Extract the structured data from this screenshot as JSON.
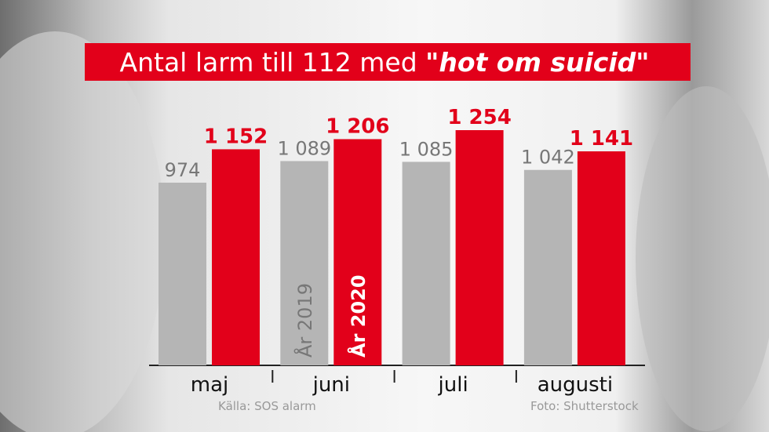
{
  "chart_data": {
    "type": "bar",
    "title": "Antal larm till 112 med",
    "title_emphasis": "\"hot om suicid\"",
    "categories": [
      "maj",
      "juni",
      "juli",
      "augusti"
    ],
    "series": [
      {
        "name": "År 2019",
        "color": "#b5b5b5",
        "values": [
          974,
          1089,
          1085,
          1042
        ],
        "value_labels": [
          "974",
          "1 089",
          "1 085",
          "1 042"
        ]
      },
      {
        "name": "År 2020",
        "color": "#e2001a",
        "values": [
          1152,
          1206,
          1254,
          1141
        ],
        "value_labels": [
          "1 152",
          "1 206",
          "1 254",
          "1 141"
        ]
      }
    ],
    "source": "Källa: SOS alarm",
    "credit": "Foto: Shutterstock"
  }
}
